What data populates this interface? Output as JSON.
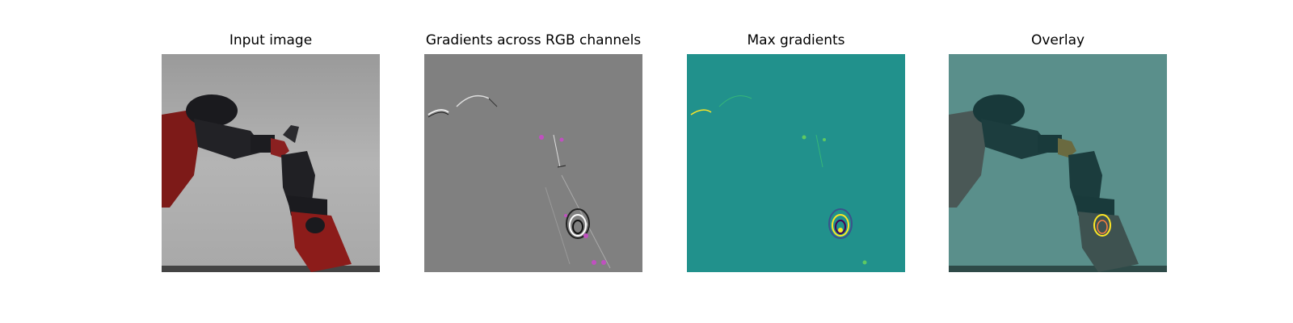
{
  "figure": {
    "panels": [
      {
        "title": "Input image"
      },
      {
        "title": "Gradients across RGB channels"
      },
      {
        "title": "Max gradients"
      },
      {
        "title": "Overlay"
      }
    ]
  },
  "colors": {
    "background": "#ffffff",
    "gradient_gray": "#808080",
    "viridis_teal": "#21918c",
    "highlight_yellow": "#fde725",
    "robot_red": "#8e1f1c",
    "robot_black": "#1e1e22",
    "backdrop_gray": "#a9a9a9",
    "overlay_teal": "#4f8c88"
  }
}
